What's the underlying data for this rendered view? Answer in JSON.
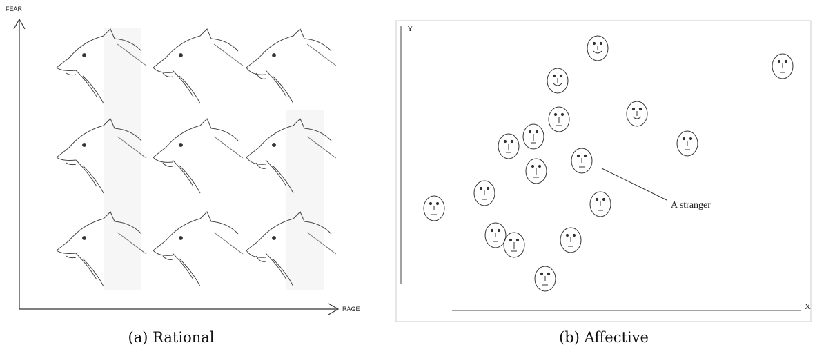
{
  "figure": {
    "rational": {
      "y_axis_label": "FEAR",
      "x_axis_label": "RAGE",
      "caption": "(a) Rational"
    },
    "affective": {
      "y_axis_label": "Y",
      "x_axis_label": "X",
      "annotation": "A stranger",
      "caption": "(b) Affective"
    }
  }
}
